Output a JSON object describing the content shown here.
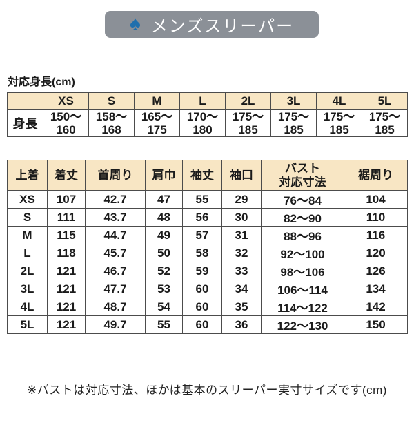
{
  "colors": {
    "badge_bg": "#8b9097",
    "spade": "#1f6fad",
    "badge_text": "#ffffff",
    "header_cell_bg": "#f8e6c4",
    "border": "#4c4c4c",
    "text": "#1b1b1b",
    "page_bg": "#ffffff"
  },
  "badge": {
    "icon": "♠",
    "label": "メンズスリーパー"
  },
  "height_table": {
    "title": "対応身長(cm)",
    "corner": "",
    "sizes": [
      "XS",
      "S",
      "M",
      "L",
      "2L",
      "3L",
      "4L",
      "5L"
    ],
    "row_label": "身長",
    "ranges": [
      [
        "150〜",
        "160"
      ],
      [
        "158〜",
        "168"
      ],
      [
        "165〜",
        "175"
      ],
      [
        "170〜",
        "180"
      ],
      [
        "175〜",
        "185"
      ],
      [
        "175〜",
        "185"
      ],
      [
        "175〜",
        "185"
      ],
      [
        "175〜",
        "185"
      ]
    ]
  },
  "size_table": {
    "headers": [
      "上着",
      "着丈",
      "首周り",
      "肩巾",
      "袖丈",
      "袖口",
      "バスト\n対応寸法",
      "裾周り"
    ],
    "rows": [
      [
        "XS",
        "107",
        "42.7",
        "47",
        "55",
        "29",
        "76〜84",
        "104"
      ],
      [
        "S",
        "111",
        "43.7",
        "48",
        "56",
        "30",
        "82〜90",
        "110"
      ],
      [
        "M",
        "115",
        "44.7",
        "49",
        "57",
        "31",
        "88〜96",
        "116"
      ],
      [
        "L",
        "118",
        "45.7",
        "50",
        "58",
        "32",
        "92〜100",
        "120"
      ],
      [
        "2L",
        "121",
        "46.7",
        "52",
        "59",
        "33",
        "98〜106",
        "126"
      ],
      [
        "3L",
        "121",
        "47.7",
        "53",
        "60",
        "34",
        "106〜114",
        "134"
      ],
      [
        "4L",
        "121",
        "48.7",
        "54",
        "60",
        "35",
        "114〜122",
        "142"
      ],
      [
        "5L",
        "121",
        "49.7",
        "55",
        "60",
        "36",
        "122〜130",
        "150"
      ]
    ]
  },
  "footnote": "※バストは対応寸法、ほかは基本のスリーパー実寸サイズです(cm)"
}
